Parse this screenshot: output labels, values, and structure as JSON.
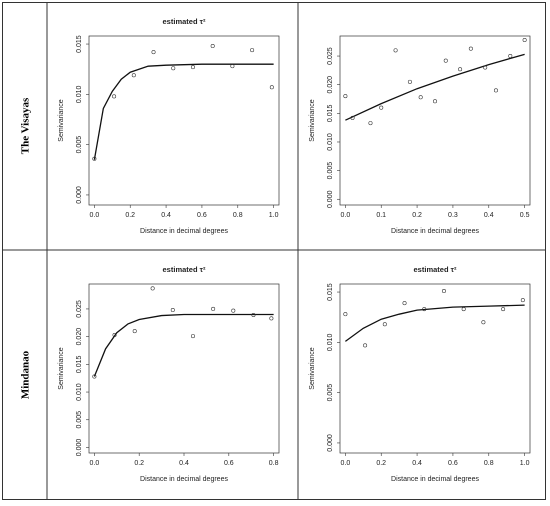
{
  "row_labels": [
    "The Visayas",
    "Mindanao"
  ],
  "chart_data": [
    {
      "type": "scatter",
      "title": "estimated τ²",
      "xlabel": "Distance in decimal degrees",
      "ylabel": "Semivariance",
      "x": [
        0,
        0.11,
        0.22,
        0.33,
        0.44,
        0.55,
        0.66,
        0.77,
        0.88,
        0.99
      ],
      "values": [
        0.0036,
        0.0098,
        0.0119,
        0.0142,
        0.0126,
        0.0127,
        0.0148,
        0.0128,
        0.0144,
        0.0107
      ],
      "curve": {
        "x": [
          0,
          0.05,
          0.1,
          0.15,
          0.2,
          0.3,
          0.4,
          0.6,
          0.8,
          1.0
        ],
        "values": [
          0.0035,
          0.0086,
          0.0103,
          0.0115,
          0.0122,
          0.0128,
          0.0129,
          0.013,
          0.013,
          0.013
        ]
      },
      "xlim": [
        -0.03,
        1.03
      ],
      "ylim": [
        -0.001,
        0.0158
      ],
      "xticks": [
        {
          "value": 0,
          "label": "0.0"
        },
        {
          "value": 0.2,
          "label": "0.2"
        },
        {
          "value": 0.4,
          "label": "0.4"
        },
        {
          "value": 0.6,
          "label": "0.6"
        },
        {
          "value": 0.8,
          "label": "0.8"
        },
        {
          "value": 1.0,
          "label": "1.0"
        }
      ],
      "yticks": [
        {
          "value": 0,
          "label": "0.000"
        },
        {
          "value": 0.005,
          "label": "0.005"
        },
        {
          "value": 0.01,
          "label": "0.010"
        },
        {
          "value": 0.015,
          "label": "0.015"
        }
      ]
    },
    {
      "type": "scatter",
      "xlabel": "Distance in decimal degrees",
      "ylabel": "Semivariance",
      "x": [
        0,
        0.02,
        0.07,
        0.1,
        0.14,
        0.18,
        0.21,
        0.25,
        0.28,
        0.32,
        0.35,
        0.39,
        0.42,
        0.46,
        0.5
      ],
      "values": [
        0.018,
        0.0142,
        0.0133,
        0.016,
        0.026,
        0.0205,
        0.0178,
        0.0171,
        0.0242,
        0.0227,
        0.0263,
        0.023,
        0.019,
        0.025,
        0.0278
      ],
      "curve": {
        "x": [
          0,
          0.1,
          0.2,
          0.3,
          0.4,
          0.5
        ],
        "values": [
          0.0138,
          0.0167,
          0.0193,
          0.0215,
          0.0235,
          0.0253
        ]
      },
      "xlim": [
        -0.015,
        0.515
      ],
      "ylim": [
        -0.001,
        0.0285
      ],
      "xticks": [
        {
          "value": 0,
          "label": "0.0"
        },
        {
          "value": 0.1,
          "label": "0.1"
        },
        {
          "value": 0.2,
          "label": "0.2"
        },
        {
          "value": 0.3,
          "label": "0.3"
        },
        {
          "value": 0.4,
          "label": "0.4"
        },
        {
          "value": 0.5,
          "label": "0.5"
        }
      ],
      "yticks": [
        {
          "value": 0,
          "label": "0.000"
        },
        {
          "value": 0.005,
          "label": "0.005"
        },
        {
          "value": 0.01,
          "label": "0.010"
        },
        {
          "value": 0.015,
          "label": "0.015"
        },
        {
          "value": 0.02,
          "label": "0.020"
        },
        {
          "value": 0.025,
          "label": "0.025"
        }
      ]
    },
    {
      "type": "scatter",
      "title": "estimated τ²",
      "xlabel": "Distance in decimal degrees",
      "ylabel": "Semivariance",
      "x": [
        0,
        0.09,
        0.18,
        0.26,
        0.35,
        0.44,
        0.53,
        0.62,
        0.71,
        0.79
      ],
      "values": [
        0.0128,
        0.0203,
        0.021,
        0.0287,
        0.0248,
        0.0201,
        0.025,
        0.0247,
        0.0239,
        0.0233
      ],
      "curve": {
        "x": [
          0,
          0.05,
          0.1,
          0.15,
          0.2,
          0.3,
          0.4,
          0.8
        ],
        "values": [
          0.0128,
          0.0178,
          0.0207,
          0.0223,
          0.0231,
          0.0238,
          0.024,
          0.024
        ]
      },
      "xlim": [
        -0.024,
        0.824
      ],
      "ylim": [
        -0.001,
        0.0295
      ],
      "xticks": [
        {
          "value": 0,
          "label": "0.0"
        },
        {
          "value": 0.2,
          "label": "0.2"
        },
        {
          "value": 0.4,
          "label": "0.4"
        },
        {
          "value": 0.6,
          "label": "0.6"
        },
        {
          "value": 0.8,
          "label": "0.8"
        }
      ],
      "yticks": [
        {
          "value": 0,
          "label": "0.000"
        },
        {
          "value": 0.005,
          "label": "0.005"
        },
        {
          "value": 0.01,
          "label": "0.010"
        },
        {
          "value": 0.015,
          "label": "0.015"
        },
        {
          "value": 0.02,
          "label": "0.020"
        },
        {
          "value": 0.025,
          "label": "0.025"
        }
      ]
    },
    {
      "type": "scatter",
      "title": "estimated τ²",
      "xlabel": "Distance in decimal degrees",
      "ylabel": "Semivariance",
      "x": [
        0,
        0.11,
        0.22,
        0.33,
        0.44,
        0.55,
        0.66,
        0.77,
        0.88,
        0.99
      ],
      "values": [
        0.0128,
        0.0097,
        0.0118,
        0.0139,
        0.0133,
        0.0151,
        0.0133,
        0.012,
        0.0133,
        0.0142
      ],
      "curve": {
        "x": [
          0,
          0.1,
          0.2,
          0.3,
          0.4,
          0.6,
          0.8,
          1.0
        ],
        "values": [
          0.0101,
          0.0114,
          0.0123,
          0.0128,
          0.0132,
          0.0135,
          0.0136,
          0.0137
        ]
      },
      "xlim": [
        -0.03,
        1.03
      ],
      "ylim": [
        -0.001,
        0.0158
      ],
      "xticks": [
        {
          "value": 0,
          "label": "0.0"
        },
        {
          "value": 0.2,
          "label": "0.2"
        },
        {
          "value": 0.4,
          "label": "0.4"
        },
        {
          "value": 0.6,
          "label": "0.6"
        },
        {
          "value": 0.8,
          "label": "0.8"
        },
        {
          "value": 1.0,
          "label": "1.0"
        }
      ],
      "yticks": [
        {
          "value": 0,
          "label": "0.000"
        },
        {
          "value": 0.005,
          "label": "0.005"
        },
        {
          "value": 0.01,
          "label": "0.010"
        },
        {
          "value": 0.015,
          "label": "0.015"
        }
      ]
    }
  ]
}
